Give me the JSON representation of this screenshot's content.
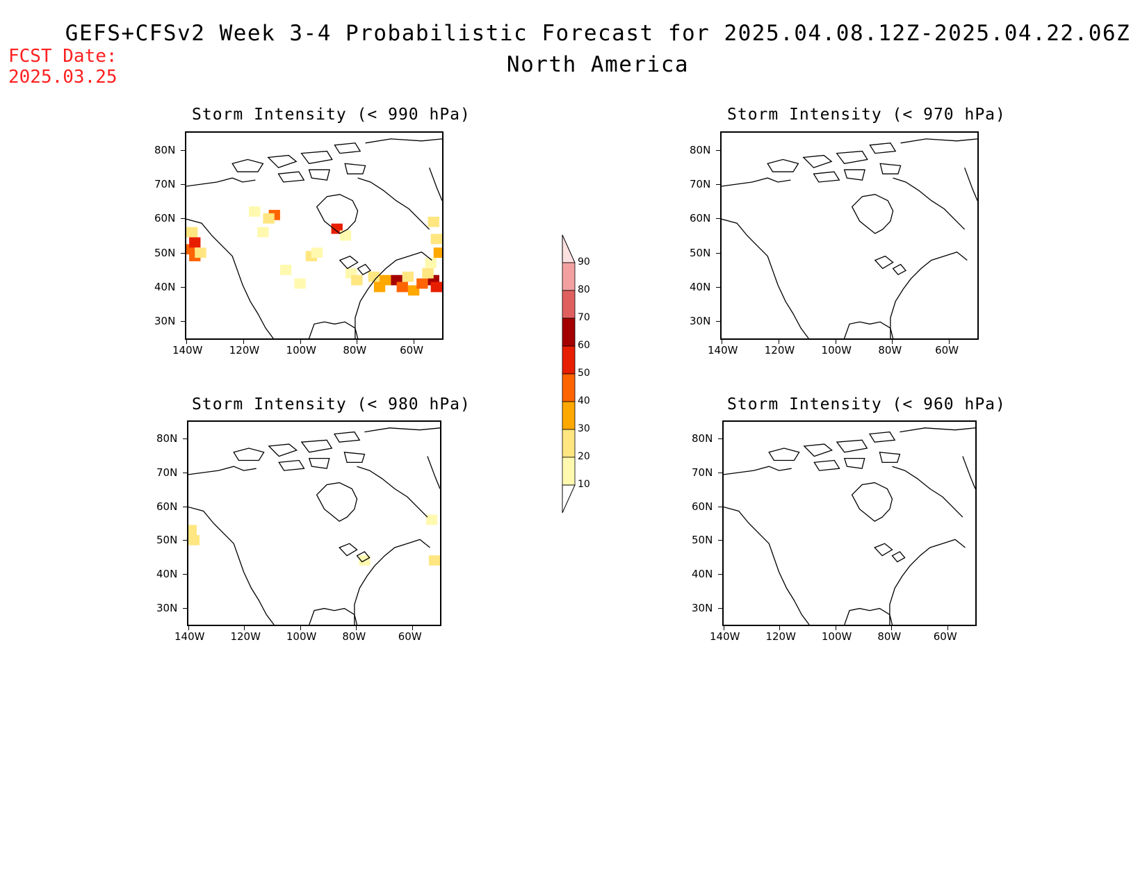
{
  "header": {
    "title": "GEFS+CFSv2 Week 3-4 Probabilistic Forecast for 2025.04.08.12Z-2025.04.22.06Z",
    "subtitle": "North America",
    "fcst_date_label": "FCST Date:",
    "fcst_date_value": "2025.03.25"
  },
  "axes": {
    "lat_labels": [
      "80N",
      "70N",
      "60N",
      "50N",
      "40N",
      "30N"
    ],
    "lon_labels": [
      "140W",
      "120W",
      "100W",
      "80W",
      "60W"
    ],
    "lat_values": [
      80,
      70,
      60,
      50,
      40,
      30
    ],
    "lon_values": [
      -140,
      -120,
      -100,
      -80,
      -60
    ],
    "lat_range": [
      25,
      85
    ],
    "lon_range": [
      -140,
      -50
    ]
  },
  "panels": [
    {
      "id": "p990",
      "title": "Storm Intensity (< 990 hPa)",
      "cells": [
        {
          "lon": -139,
          "lat": 51,
          "v": 40
        },
        {
          "lon": -137,
          "lat": 53,
          "v": 55
        },
        {
          "lon": -137,
          "lat": 49,
          "v": 45
        },
        {
          "lon": -138,
          "lat": 56,
          "v": 25
        },
        {
          "lon": -135,
          "lat": 50,
          "v": 20
        },
        {
          "lon": -109,
          "lat": 61,
          "v": 45
        },
        {
          "lon": -111,
          "lat": 60,
          "v": 20
        },
        {
          "lon": -113,
          "lat": 56,
          "v": 15
        },
        {
          "lon": -116,
          "lat": 62,
          "v": 15
        },
        {
          "lon": -87,
          "lat": 57,
          "v": 55
        },
        {
          "lon": -84,
          "lat": 55,
          "v": 10
        },
        {
          "lon": -96,
          "lat": 49,
          "v": 20
        },
        {
          "lon": -94,
          "lat": 50,
          "v": 10
        },
        {
          "lon": -82,
          "lat": 44,
          "v": 15
        },
        {
          "lon": -80,
          "lat": 42,
          "v": 20
        },
        {
          "lon": -74,
          "lat": 43,
          "v": 25
        },
        {
          "lon": -70,
          "lat": 42,
          "v": 35
        },
        {
          "lon": -72,
          "lat": 40,
          "v": 30
        },
        {
          "lon": -66,
          "lat": 42,
          "v": 65
        },
        {
          "lon": -64,
          "lat": 40,
          "v": 40
        },
        {
          "lon": -62,
          "lat": 43,
          "v": 25
        },
        {
          "lon": -60,
          "lat": 39,
          "v": 30
        },
        {
          "lon": -57,
          "lat": 41,
          "v": 45
        },
        {
          "lon": -53,
          "lat": 42,
          "v": 65
        },
        {
          "lon": -52,
          "lat": 40,
          "v": 50
        },
        {
          "lon": -55,
          "lat": 44,
          "v": 20
        },
        {
          "lon": -53,
          "lat": 59,
          "v": 20
        },
        {
          "lon": -52,
          "lat": 54,
          "v": 25
        },
        {
          "lon": -51,
          "lat": 50,
          "v": 30
        },
        {
          "lon": -54,
          "lat": 47,
          "v": 15
        },
        {
          "lon": -100,
          "lat": 41,
          "v": 10
        },
        {
          "lon": -105,
          "lat": 45,
          "v": 10
        }
      ]
    },
    {
      "id": "p970",
      "title": "Storm Intensity (< 970 hPa)",
      "cells": []
    },
    {
      "id": "p980",
      "title": "Storm Intensity (< 980 hPa)",
      "cells": [
        {
          "lon": -139,
          "lat": 53,
          "v": 20
        },
        {
          "lon": -138,
          "lat": 50,
          "v": 25
        },
        {
          "lon": -77,
          "lat": 44,
          "v": 10
        },
        {
          "lon": -52,
          "lat": 44,
          "v": 20
        },
        {
          "lon": -53,
          "lat": 56,
          "v": 10
        }
      ]
    },
    {
      "id": "p960",
      "title": "Storm Intensity (< 960 hPa)",
      "cells": []
    }
  ],
  "colorbar": {
    "labels": [
      "90",
      "80",
      "70",
      "60",
      "50",
      "40",
      "30",
      "20",
      "10"
    ],
    "levels": [
      10,
      20,
      30,
      40,
      50,
      60,
      70,
      80,
      90
    ],
    "colors": [
      "#fff9b0",
      "#ffe680",
      "#ffa800",
      "#ff6400",
      "#e81e00",
      "#a50000",
      "#e06060",
      "#f2a0a0",
      "#fde0e0"
    ]
  }
}
